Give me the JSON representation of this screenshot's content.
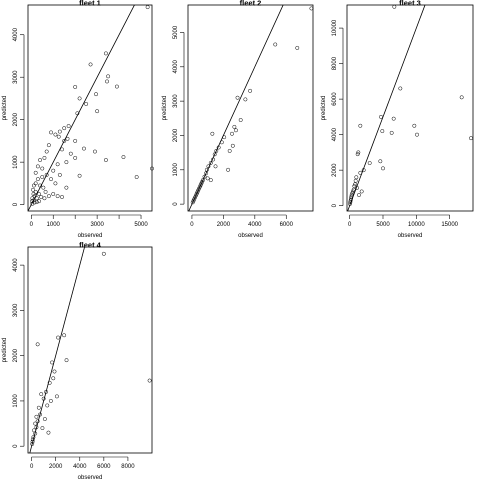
{
  "chart_data": [
    {
      "type": "scatter",
      "title": "fleet 1",
      "xlabel": "observed",
      "ylabel": "predicted",
      "xlim": [
        -150,
        5500
      ],
      "ylim": [
        -150,
        4700
      ],
      "xticks": [
        0,
        1000,
        2000,
        3000,
        4000,
        5000
      ],
      "xtick_labels": [
        "0",
        "1000",
        "",
        "3000",
        "",
        "5000"
      ],
      "yticks": [
        0,
        1000,
        2000,
        3000,
        4000
      ],
      "ytick_labels": [
        "0",
        "1000",
        "2000",
        "3000",
        "4000"
      ],
      "reference_line": {
        "intercept": 0,
        "slope": 1
      },
      "points": [
        [
          5300,
          4650
        ],
        [
          3400,
          3560
        ],
        [
          2700,
          3300
        ],
        [
          3500,
          3020
        ],
        [
          3450,
          2900
        ],
        [
          2000,
          2770
        ],
        [
          2950,
          2600
        ],
        [
          3900,
          2780
        ],
        [
          2200,
          2500
        ],
        [
          2500,
          2370
        ],
        [
          2100,
          2150
        ],
        [
          3000,
          2200
        ],
        [
          1500,
          1800
        ],
        [
          1700,
          1850
        ],
        [
          1300,
          1720
        ],
        [
          1100,
          1650
        ],
        [
          1250,
          1600
        ],
        [
          1500,
          1500
        ],
        [
          1650,
          1550
        ],
        [
          2000,
          1500
        ],
        [
          2400,
          1320
        ],
        [
          2900,
          1250
        ],
        [
          3400,
          1050
        ],
        [
          4200,
          1120
        ],
        [
          5500,
          850
        ],
        [
          4800,
          650
        ],
        [
          2200,
          680
        ],
        [
          2000,
          1100
        ],
        [
          1800,
          1200
        ],
        [
          1600,
          1000
        ],
        [
          1200,
          950
        ],
        [
          900,
          1700
        ],
        [
          800,
          1400
        ],
        [
          700,
          1250
        ],
        [
          600,
          1100
        ],
        [
          400,
          1050
        ],
        [
          300,
          900
        ],
        [
          500,
          850
        ],
        [
          700,
          700
        ],
        [
          900,
          600
        ],
        [
          300,
          600
        ],
        [
          200,
          500
        ],
        [
          400,
          450
        ],
        [
          550,
          400
        ],
        [
          650,
          300
        ],
        [
          200,
          300
        ],
        [
          100,
          250
        ],
        [
          50,
          150
        ],
        [
          100,
          100
        ],
        [
          150,
          200
        ],
        [
          250,
          150
        ],
        [
          350,
          250
        ],
        [
          450,
          180
        ],
        [
          600,
          150
        ],
        [
          800,
          200
        ],
        [
          1000,
          250
        ],
        [
          1200,
          200
        ],
        [
          1400,
          180
        ],
        [
          150,
          50
        ],
        [
          250,
          60
        ],
        [
          350,
          80
        ],
        [
          50,
          20
        ],
        [
          80,
          350
        ],
        [
          120,
          450
        ],
        [
          30,
          80
        ],
        [
          200,
          750
        ],
        [
          1000,
          800
        ],
        [
          1100,
          500
        ],
        [
          1300,
          700
        ],
        [
          500,
          650
        ],
        [
          1600,
          400
        ],
        [
          1400,
          1300
        ]
      ]
    },
    {
      "type": "scatter",
      "title": "fleet 2",
      "xlabel": "observed",
      "ylabel": "predicted",
      "xlim": [
        -250,
        7700
      ],
      "ylim": [
        -200,
        5800
      ],
      "xticks": [
        0,
        2000,
        4000,
        6000
      ],
      "xtick_labels": [
        "0",
        "2000",
        "4000",
        "6000"
      ],
      "yticks": [
        0,
        1000,
        2000,
        3000,
        4000,
        5000
      ],
      "ytick_labels": [
        "0",
        "1000",
        "2000",
        "3000",
        "4000",
        "5000"
      ],
      "reference_line": {
        "intercept": 0,
        "slope": 1
      },
      "points": [
        [
          7600,
          5700
        ],
        [
          5300,
          4650
        ],
        [
          6700,
          4550
        ],
        [
          3700,
          3300
        ],
        [
          3400,
          3050
        ],
        [
          2900,
          3100
        ],
        [
          3100,
          2450
        ],
        [
          2800,
          2150
        ],
        [
          2550,
          2050
        ],
        [
          2700,
          2250
        ],
        [
          2600,
          1700
        ],
        [
          2400,
          1550
        ],
        [
          2050,
          1950
        ],
        [
          1900,
          1800
        ],
        [
          1700,
          1650
        ],
        [
          1550,
          1550
        ],
        [
          1450,
          1450
        ],
        [
          1350,
          1300
        ],
        [
          1300,
          2050
        ],
        [
          1200,
          1200
        ],
        [
          1050,
          1100
        ],
        [
          950,
          1000
        ],
        [
          900,
          900
        ],
        [
          800,
          800
        ],
        [
          700,
          700
        ],
        [
          650,
          650
        ],
        [
          600,
          600
        ],
        [
          550,
          550
        ],
        [
          500,
          500
        ],
        [
          450,
          450
        ],
        [
          400,
          400
        ],
        [
          350,
          350
        ],
        [
          300,
          300
        ],
        [
          250,
          250
        ],
        [
          200,
          200
        ],
        [
          150,
          150
        ],
        [
          100,
          100
        ],
        [
          50,
          50
        ],
        [
          1200,
          700
        ],
        [
          1000,
          750
        ],
        [
          1500,
          1100
        ],
        [
          2300,
          1000
        ]
      ]
    },
    {
      "type": "scatter",
      "title": "fleet 3",
      "xlabel": "observed",
      "ylabel": "predicted",
      "xlim": [
        -400,
        18500
      ],
      "ylim": [
        -300,
        11300
      ],
      "xticks": [
        0,
        5000,
        10000,
        15000
      ],
      "xtick_labels": [
        "0",
        "5000",
        "10000",
        "15000"
      ],
      "yticks": [
        0,
        2000,
        4000,
        6000,
        8000,
        10000
      ],
      "ytick_labels": [
        "0",
        "2000",
        "4000",
        "6000",
        "8000",
        "10000"
      ],
      "reference_line": {
        "intercept": 0,
        "slope": 1
      },
      "points": [
        [
          6700,
          11200
        ],
        [
          7600,
          6600
        ],
        [
          16800,
          6100
        ],
        [
          18200,
          3800
        ],
        [
          9700,
          4500
        ],
        [
          10100,
          4000
        ],
        [
          4700,
          5000
        ],
        [
          6600,
          4900
        ],
        [
          6300,
          4100
        ],
        [
          4900,
          4200
        ],
        [
          1600,
          4500
        ],
        [
          4600,
          2500
        ],
        [
          5000,
          2100
        ],
        [
          3000,
          2400
        ],
        [
          2100,
          2000
        ],
        [
          1600,
          1850
        ],
        [
          1300,
          3000
        ],
        [
          1200,
          2900
        ],
        [
          1000,
          1600
        ],
        [
          900,
          1400
        ],
        [
          800,
          1200
        ],
        [
          700,
          1100
        ],
        [
          600,
          900
        ],
        [
          500,
          800
        ],
        [
          400,
          700
        ],
        [
          300,
          600
        ],
        [
          250,
          500
        ],
        [
          200,
          400
        ],
        [
          150,
          300
        ],
        [
          100,
          200
        ],
        [
          50,
          100
        ],
        [
          1800,
          800
        ],
        [
          1400,
          600
        ],
        [
          1100,
          1000
        ]
      ]
    },
    {
      "type": "scatter",
      "title": "fleet 4",
      "xlabel": "observed",
      "ylabel": "predicted",
      "xlim": [
        -300,
        10000
      ],
      "ylim": [
        -150,
        4400
      ],
      "xticks": [
        0,
        2000,
        4000,
        6000,
        8000
      ],
      "xtick_labels": [
        "0",
        "2000",
        "4000",
        "6000",
        "8000"
      ],
      "yticks": [
        0,
        1000,
        2000,
        3000,
        4000
      ],
      "ytick_labels": [
        "0",
        "1000",
        "2000",
        "3000",
        "4000"
      ],
      "reference_line": {
        "intercept": 0,
        "slope": 1
      },
      "points": [
        [
          6000,
          4250
        ],
        [
          9800,
          1450
        ],
        [
          2700,
          2450
        ],
        [
          2200,
          2400
        ],
        [
          500,
          2250
        ],
        [
          2900,
          1900
        ],
        [
          1700,
          1850
        ],
        [
          1900,
          1650
        ],
        [
          1800,
          1500
        ],
        [
          1500,
          1400
        ],
        [
          1200,
          1200
        ],
        [
          800,
          1150
        ],
        [
          1000,
          1050
        ],
        [
          1300,
          900
        ],
        [
          600,
          850
        ],
        [
          700,
          700
        ],
        [
          400,
          650
        ],
        [
          500,
          550
        ],
        [
          300,
          500
        ],
        [
          400,
          420
        ],
        [
          200,
          350
        ],
        [
          300,
          280
        ],
        [
          150,
          200
        ],
        [
          100,
          150
        ],
        [
          80,
          100
        ],
        [
          50,
          50
        ],
        [
          1100,
          600
        ],
        [
          900,
          400
        ],
        [
          1600,
          1000
        ],
        [
          2100,
          1100
        ],
        [
          1400,
          300
        ]
      ]
    }
  ]
}
